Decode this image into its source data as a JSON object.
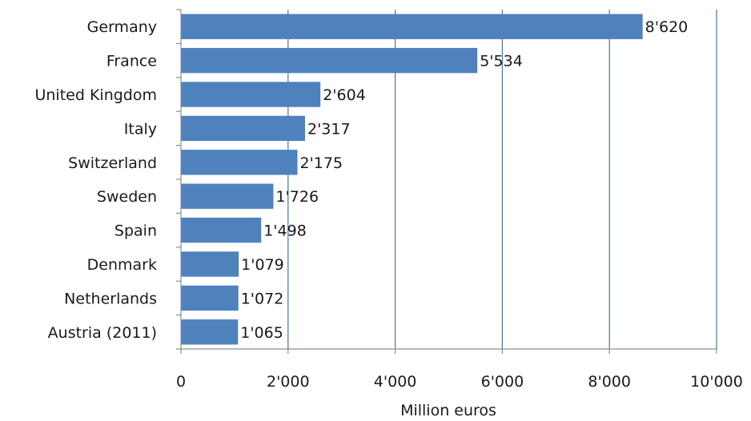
{
  "chart_data": {
    "type": "bar",
    "orientation": "horizontal",
    "categories": [
      "Germany",
      "France",
      "United Kingdom",
      "Italy",
      "Switzerland",
      "Sweden",
      "Spain",
      "Denmark",
      "Netherlands",
      "Austria (2011)"
    ],
    "values": [
      8620,
      5534,
      2604,
      2317,
      2175,
      1726,
      1498,
      1079,
      1072,
      1065
    ],
    "value_labels": [
      "8'620",
      "5'534",
      "2'604",
      "2'317",
      "2'175",
      "1'726",
      "1'498",
      "1'079",
      "1'072",
      "1'065"
    ],
    "xticks": [
      0,
      2000,
      4000,
      6000,
      8000,
      10000
    ],
    "xtick_labels": [
      "0",
      "2'000",
      "4'000",
      "6'000",
      "8'000",
      "10'000"
    ],
    "xlim": [
      0,
      10000
    ],
    "xlabel": "Million euros",
    "ylabel": "",
    "title": "",
    "grid": "vertical",
    "legend": "none",
    "bar_color": "#4f81bd",
    "grid_color": "#4f7299",
    "axis_color": "#8e8e8e"
  }
}
